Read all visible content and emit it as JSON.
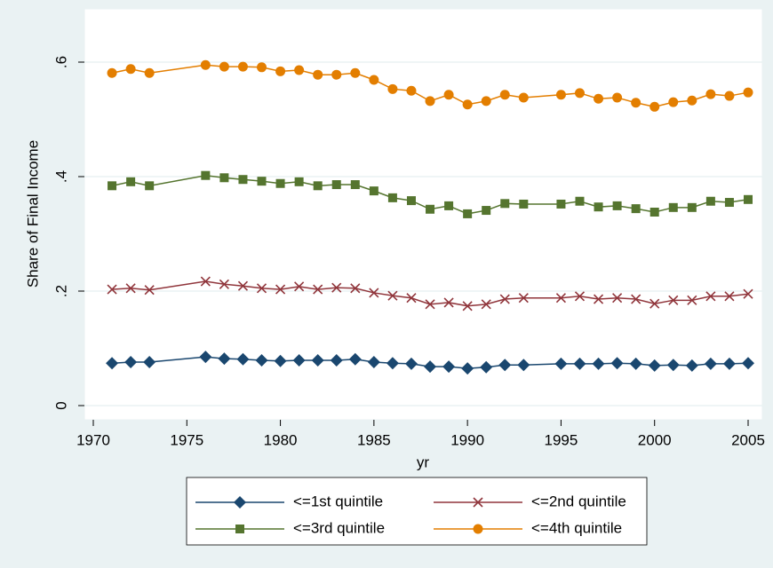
{
  "chart_data": {
    "type": "line",
    "x_label": "yr",
    "y_label": "Share of Final Income",
    "x": [
      1971,
      1972,
      1973,
      1976,
      1977,
      1978,
      1979,
      1980,
      1981,
      1982,
      1983,
      1984,
      1985,
      1986,
      1987,
      1988,
      1989,
      1990,
      1991,
      1992,
      1993,
      1995,
      1996,
      1997,
      1998,
      1999,
      2000,
      2001,
      2002,
      2003,
      2004,
      2005
    ],
    "series": [
      {
        "name": "<=1st quintile",
        "color": "#1a476f",
        "marker": "diamond",
        "values": [
          0.074,
          0.076,
          0.076,
          0.085,
          0.082,
          0.081,
          0.079,
          0.078,
          0.079,
          0.079,
          0.079,
          0.081,
          0.076,
          0.074,
          0.073,
          0.068,
          0.068,
          0.065,
          0.067,
          0.071,
          0.071,
          0.073,
          0.073,
          0.073,
          0.074,
          0.073,
          0.07,
          0.071,
          0.07,
          0.073,
          0.073,
          0.074
        ]
      },
      {
        "name": "<=2nd quintile",
        "color": "#90353b",
        "marker": "x",
        "values": [
          0.203,
          0.205,
          0.202,
          0.217,
          0.212,
          0.209,
          0.205,
          0.203,
          0.208,
          0.203,
          0.206,
          0.205,
          0.197,
          0.192,
          0.188,
          0.177,
          0.18,
          0.174,
          0.177,
          0.186,
          0.188,
          0.188,
          0.191,
          0.186,
          0.188,
          0.186,
          0.178,
          0.184,
          0.184,
          0.191,
          0.191,
          0.195
        ]
      },
      {
        "name": "<=3rd quintile",
        "color": "#55752f",
        "marker": "square",
        "values": [
          0.384,
          0.391,
          0.384,
          0.402,
          0.398,
          0.395,
          0.392,
          0.388,
          0.391,
          0.384,
          0.386,
          0.386,
          0.375,
          0.363,
          0.358,
          0.343,
          0.349,
          0.335,
          0.341,
          0.353,
          0.352,
          0.352,
          0.357,
          0.347,
          0.349,
          0.344,
          0.338,
          0.346,
          0.346,
          0.357,
          0.355,
          0.36
        ]
      },
      {
        "name": "<=4th quintile",
        "color": "#e37e00",
        "marker": "circle",
        "values": [
          0.581,
          0.588,
          0.581,
          0.595,
          0.592,
          0.592,
          0.591,
          0.584,
          0.586,
          0.578,
          0.578,
          0.581,
          0.569,
          0.553,
          0.55,
          0.532,
          0.543,
          0.526,
          0.532,
          0.543,
          0.538,
          0.543,
          0.546,
          0.536,
          0.538,
          0.529,
          0.522,
          0.53,
          0.533,
          0.544,
          0.541,
          0.547
        ]
      }
    ],
    "xlim": [
      1970,
      2005
    ],
    "xticks": [
      1970,
      1975,
      1980,
      1985,
      1990,
      1995,
      2000,
      2005
    ],
    "ylim": [
      0,
      0.6
    ],
    "yticks": [
      0,
      {
        "value": 0.2,
        "label": ".2"
      },
      {
        "value": 0.4,
        "label": ".4"
      },
      {
        "value": 0.6,
        "label": ".6"
      }
    ],
    "grid": true,
    "legend": "bottom"
  }
}
